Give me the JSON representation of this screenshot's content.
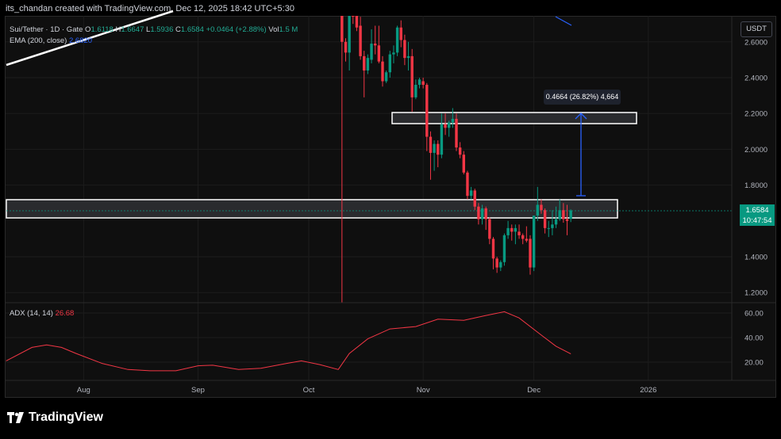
{
  "credit": "its_chandan created with TradingView.com, Dec 12, 2025 18:42 UTC+5:30",
  "legend": {
    "symbol": "Sui/Tether · 1D · Gate",
    "o_label": "O",
    "o": "1.6118",
    "h_label": "H",
    "h": "1.6647",
    "l_label": "L",
    "l": "1.5936",
    "c_label": "C",
    "c": "1.6584",
    "change": "+0.0464 (+2.88%)",
    "vol_label": "Vol",
    "vol": "1.5 M",
    "ema_label": "EMA (200, close)",
    "ema_value": "2.6820"
  },
  "currency_button": "USDT",
  "price_tag": {
    "price": "1.6584",
    "countdown": "10:47:54"
  },
  "measure_label": "0.4664 (26.82%) 4,664",
  "adx_legend": {
    "label": "ADX (14, 14)",
    "value": "26.68"
  },
  "logo_text": "TradingView",
  "colors": {
    "up": "#089981",
    "down": "#f23645",
    "ema": "#2962ff",
    "adx": "#f23645",
    "background": "#0f0f0f"
  },
  "chart_data": [
    {
      "type": "candlestick",
      "title": "Sui/Tether · 1D · Gate",
      "y_ticks": [
        "2.6000",
        "2.4000",
        "2.2000",
        "2.0000",
        "1.8000",
        "1.4000",
        "1.2000"
      ],
      "y_tick_values": [
        2.6,
        2.4,
        2.2,
        2.0,
        1.8,
        1.4,
        1.2
      ],
      "ylim": [
        1.14,
        2.74
      ],
      "x_ticks": [
        "Aug",
        "Sep",
        "Oct",
        "Nov",
        "Dec",
        "2026"
      ],
      "x_tick_dates": [
        "2025-08-01",
        "2025-09-01",
        "2025-10-01",
        "2025-11-01",
        "2025-12-01",
        "2026-01-01"
      ],
      "grid": true,
      "candles": [
        [
          "2025-10-10",
          3.4,
          3.45,
          0.56,
          2.6
        ],
        [
          "2025-10-11",
          2.6,
          2.62,
          2.49,
          2.54
        ],
        [
          "2025-10-12",
          2.54,
          2.8,
          2.44,
          2.78
        ],
        [
          "2025-10-13",
          2.85,
          2.9,
          2.7,
          2.8
        ],
        [
          "2025-10-14",
          2.8,
          2.82,
          2.66,
          2.68
        ],
        [
          "2025-10-15",
          2.69,
          2.74,
          2.5,
          2.52
        ],
        [
          "2025-10-16",
          2.52,
          2.55,
          2.29,
          2.44
        ],
        [
          "2025-10-17",
          2.44,
          2.53,
          2.42,
          2.51
        ],
        [
          "2025-10-18",
          2.5,
          2.67,
          2.48,
          2.59
        ],
        [
          "2025-10-19",
          2.59,
          2.69,
          2.53,
          2.58
        ],
        [
          "2025-10-20",
          2.58,
          2.69,
          2.48,
          2.49
        ],
        [
          "2025-10-21",
          2.49,
          2.52,
          2.35,
          2.38
        ],
        [
          "2025-10-22",
          2.38,
          2.44,
          2.37,
          2.43
        ],
        [
          "2025-10-23",
          2.43,
          2.55,
          2.4,
          2.53
        ],
        [
          "2025-10-24",
          2.53,
          2.58,
          2.48,
          2.54
        ],
        [
          "2025-10-25",
          2.54,
          2.69,
          2.52,
          2.68
        ],
        [
          "2025-10-26",
          2.68,
          2.72,
          2.57,
          2.61
        ],
        [
          "2025-10-27",
          2.61,
          2.64,
          2.47,
          2.51
        ],
        [
          "2025-10-28",
          2.51,
          2.6,
          2.44,
          2.52
        ],
        [
          "2025-10-29",
          2.52,
          2.56,
          2.21,
          2.29
        ],
        [
          "2025-10-30",
          2.29,
          2.39,
          2.28,
          2.36
        ],
        [
          "2025-10-31",
          2.36,
          2.4,
          2.34,
          2.39
        ],
        [
          "2025-11-01",
          2.38,
          2.4,
          2.34,
          2.36
        ],
        [
          "2025-11-02",
          2.36,
          2.37,
          1.99,
          2.07
        ],
        [
          "2025-11-03",
          2.07,
          2.1,
          1.83,
          1.98
        ],
        [
          "2025-11-04",
          1.98,
          2.05,
          1.88,
          2.03
        ],
        [
          "2025-11-05",
          2.03,
          2.05,
          1.9,
          1.97
        ],
        [
          "2025-11-06",
          1.97,
          2.2,
          1.95,
          2.14
        ],
        [
          "2025-11-07",
          2.14,
          2.2,
          2.08,
          2.12
        ],
        [
          "2025-11-08",
          2.12,
          2.16,
          2.07,
          2.15
        ],
        [
          "2025-11-09",
          2.15,
          2.23,
          2.12,
          2.17
        ],
        [
          "2025-11-10",
          2.17,
          2.2,
          1.99,
          2.01
        ],
        [
          "2025-11-11",
          2.01,
          2.04,
          1.95,
          1.97
        ],
        [
          "2025-11-12",
          1.97,
          1.99,
          1.86,
          1.87
        ],
        [
          "2025-11-13",
          1.87,
          1.88,
          1.72,
          1.74
        ],
        [
          "2025-11-14",
          1.74,
          1.79,
          1.72,
          1.77
        ],
        [
          "2025-11-15",
          1.77,
          1.78,
          1.66,
          1.68
        ],
        [
          "2025-11-16",
          1.68,
          1.7,
          1.58,
          1.61
        ],
        [
          "2025-11-17",
          1.61,
          1.69,
          1.58,
          1.67
        ],
        [
          "2025-11-18",
          1.67,
          1.68,
          1.55,
          1.61
        ],
        [
          "2025-11-19",
          1.61,
          1.62,
          1.47,
          1.5
        ],
        [
          "2025-11-20",
          1.5,
          1.51,
          1.33,
          1.39
        ],
        [
          "2025-11-21",
          1.39,
          1.4,
          1.31,
          1.34
        ],
        [
          "2025-11-22",
          1.34,
          1.38,
          1.32,
          1.37
        ],
        [
          "2025-11-23",
          1.37,
          1.53,
          1.35,
          1.52
        ],
        [
          "2025-11-24",
          1.52,
          1.6,
          1.5,
          1.56
        ],
        [
          "2025-11-25",
          1.56,
          1.58,
          1.49,
          1.54
        ],
        [
          "2025-11-26",
          1.54,
          1.58,
          1.47,
          1.56
        ],
        [
          "2025-11-27",
          1.54,
          1.58,
          1.5,
          1.52
        ],
        [
          "2025-11-28",
          1.52,
          1.53,
          1.47,
          1.5
        ],
        [
          "2025-11-29",
          1.5,
          1.57,
          1.48,
          1.49
        ],
        [
          "2025-11-30",
          1.5,
          1.52,
          1.3,
          1.34
        ],
        [
          "2025-12-01",
          1.34,
          1.63,
          1.32,
          1.63
        ],
        [
          "2025-12-02",
          1.63,
          1.79,
          1.6,
          1.69
        ],
        [
          "2025-12-03",
          1.69,
          1.72,
          1.64,
          1.66
        ],
        [
          "2025-12-04",
          1.66,
          1.67,
          1.53,
          1.56
        ],
        [
          "2025-12-05",
          1.56,
          1.6,
          1.51,
          1.56
        ],
        [
          "2025-12-06",
          1.56,
          1.66,
          1.52,
          1.58
        ],
        [
          "2025-12-07",
          1.58,
          1.68,
          1.56,
          1.61
        ],
        [
          "2025-12-08",
          1.61,
          1.72,
          1.6,
          1.66
        ],
        [
          "2025-12-09",
          1.66,
          1.7,
          1.59,
          1.61
        ],
        [
          "2025-12-10",
          1.61,
          1.69,
          1.52,
          1.6
        ],
        [
          "2025-12-11",
          1.6118,
          1.6647,
          1.5936,
          1.6584
        ]
      ]
    },
    {
      "type": "line",
      "title": "ADX (14, 14)",
      "y_ticks": [
        "60.00",
        "40.00",
        "20.00"
      ],
      "y_tick_values": [
        60,
        40,
        20
      ],
      "ylim": [
        0,
        67
      ],
      "series": [
        {
          "name": "ADX (14, 14)",
          "points": [
            [
              "2025-07-11",
              21
            ],
            [
              "2025-07-18",
              32
            ],
            [
              "2025-07-22",
              34
            ],
            [
              "2025-07-26",
              32
            ],
            [
              "2025-07-30",
              27
            ],
            [
              "2025-08-06",
              19
            ],
            [
              "2025-08-13",
              14
            ],
            [
              "2025-08-19",
              13
            ],
            [
              "2025-08-26",
              13
            ],
            [
              "2025-09-01",
              17
            ],
            [
              "2025-09-05",
              17.5
            ],
            [
              "2025-09-12",
              14
            ],
            [
              "2025-09-18",
              15
            ],
            [
              "2025-09-25",
              19
            ],
            [
              "2025-09-29",
              21
            ],
            [
              "2025-10-04",
              18
            ],
            [
              "2025-10-09",
              14
            ],
            [
              "2025-10-12",
              27
            ],
            [
              "2025-10-17",
              39
            ],
            [
              "2025-10-23",
              47
            ],
            [
              "2025-10-30",
              49
            ],
            [
              "2025-11-05",
              55
            ],
            [
              "2025-11-12",
              54
            ],
            [
              "2025-11-18",
              58
            ],
            [
              "2025-11-23",
              61
            ],
            [
              "2025-11-27",
              56
            ],
            [
              "2025-12-03",
              42
            ],
            [
              "2025-12-07",
              33
            ],
            [
              "2025-12-11",
              26.68
            ]
          ]
        }
      ]
    }
  ]
}
